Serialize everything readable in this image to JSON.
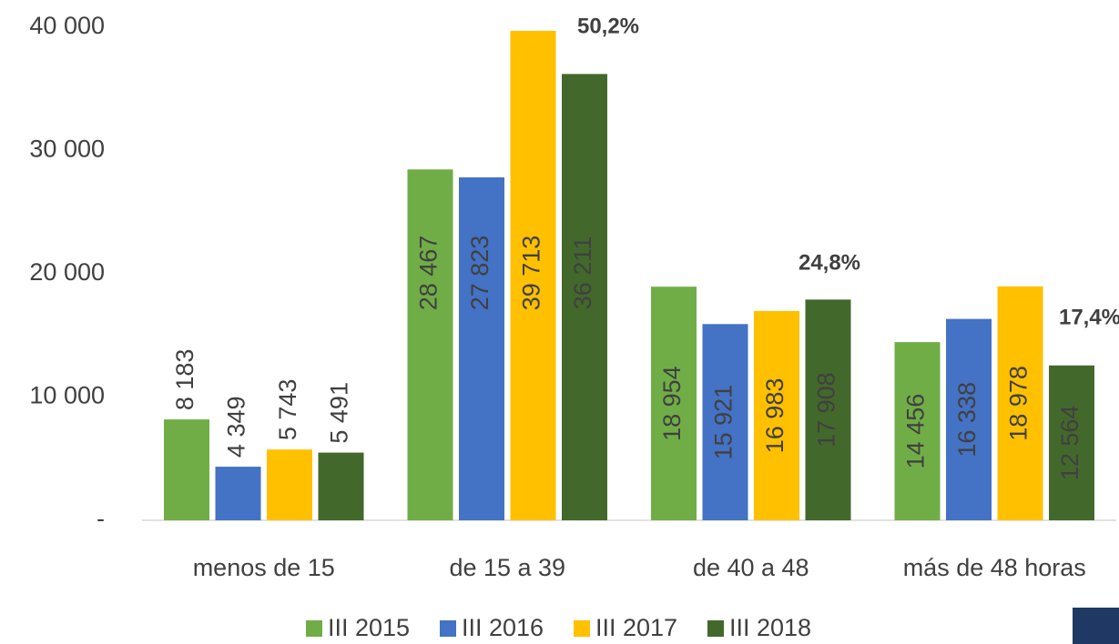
{
  "chart_data": {
    "type": "bar",
    "categories": [
      "menos de 15",
      "de 15 a 39",
      "de 40 a 48",
      "más de 48 horas"
    ],
    "series": [
      {
        "name": "III 2015",
        "color": "#70ad47",
        "label_color": "#404040",
        "values": [
          8183,
          28467,
          18954,
          14456
        ],
        "value_labels": [
          "8 183",
          "28 467",
          "18 954",
          "14 456"
        ]
      },
      {
        "name": "III 2016",
        "color": "#4472c4",
        "label_color": "#ffffff",
        "values": [
          4349,
          27823,
          15921,
          16338
        ],
        "value_labels": [
          "4 349",
          "27 823",
          "15 921",
          "16 338"
        ]
      },
      {
        "name": "III 2017",
        "color": "#ffc000",
        "label_color": "#404040",
        "values": [
          5743,
          39713,
          16983,
          18978
        ],
        "value_labels": [
          "5 743",
          "39 713",
          "16 983",
          "18 978"
        ]
      },
      {
        "name": "III 2018",
        "color": "#43682b",
        "label_color": "#ffffff",
        "values": [
          5491,
          36211,
          17908,
          12564
        ],
        "value_labels": [
          "5 491",
          "36 211",
          "17 908",
          "12 564"
        ]
      }
    ],
    "annotations": [
      "50,2%",
      "24,8%",
      "17,4%"
    ],
    "ylim": [
      0,
      40000
    ],
    "yticks": [
      {
        "value": 0,
        "label": "-"
      },
      {
        "value": 10000,
        "label": "10 000"
      },
      {
        "value": 20000,
        "label": "20 000"
      },
      {
        "value": 30000,
        "label": "30 000"
      },
      {
        "value": 40000,
        "label": "40 000"
      }
    ],
    "grid": false
  }
}
